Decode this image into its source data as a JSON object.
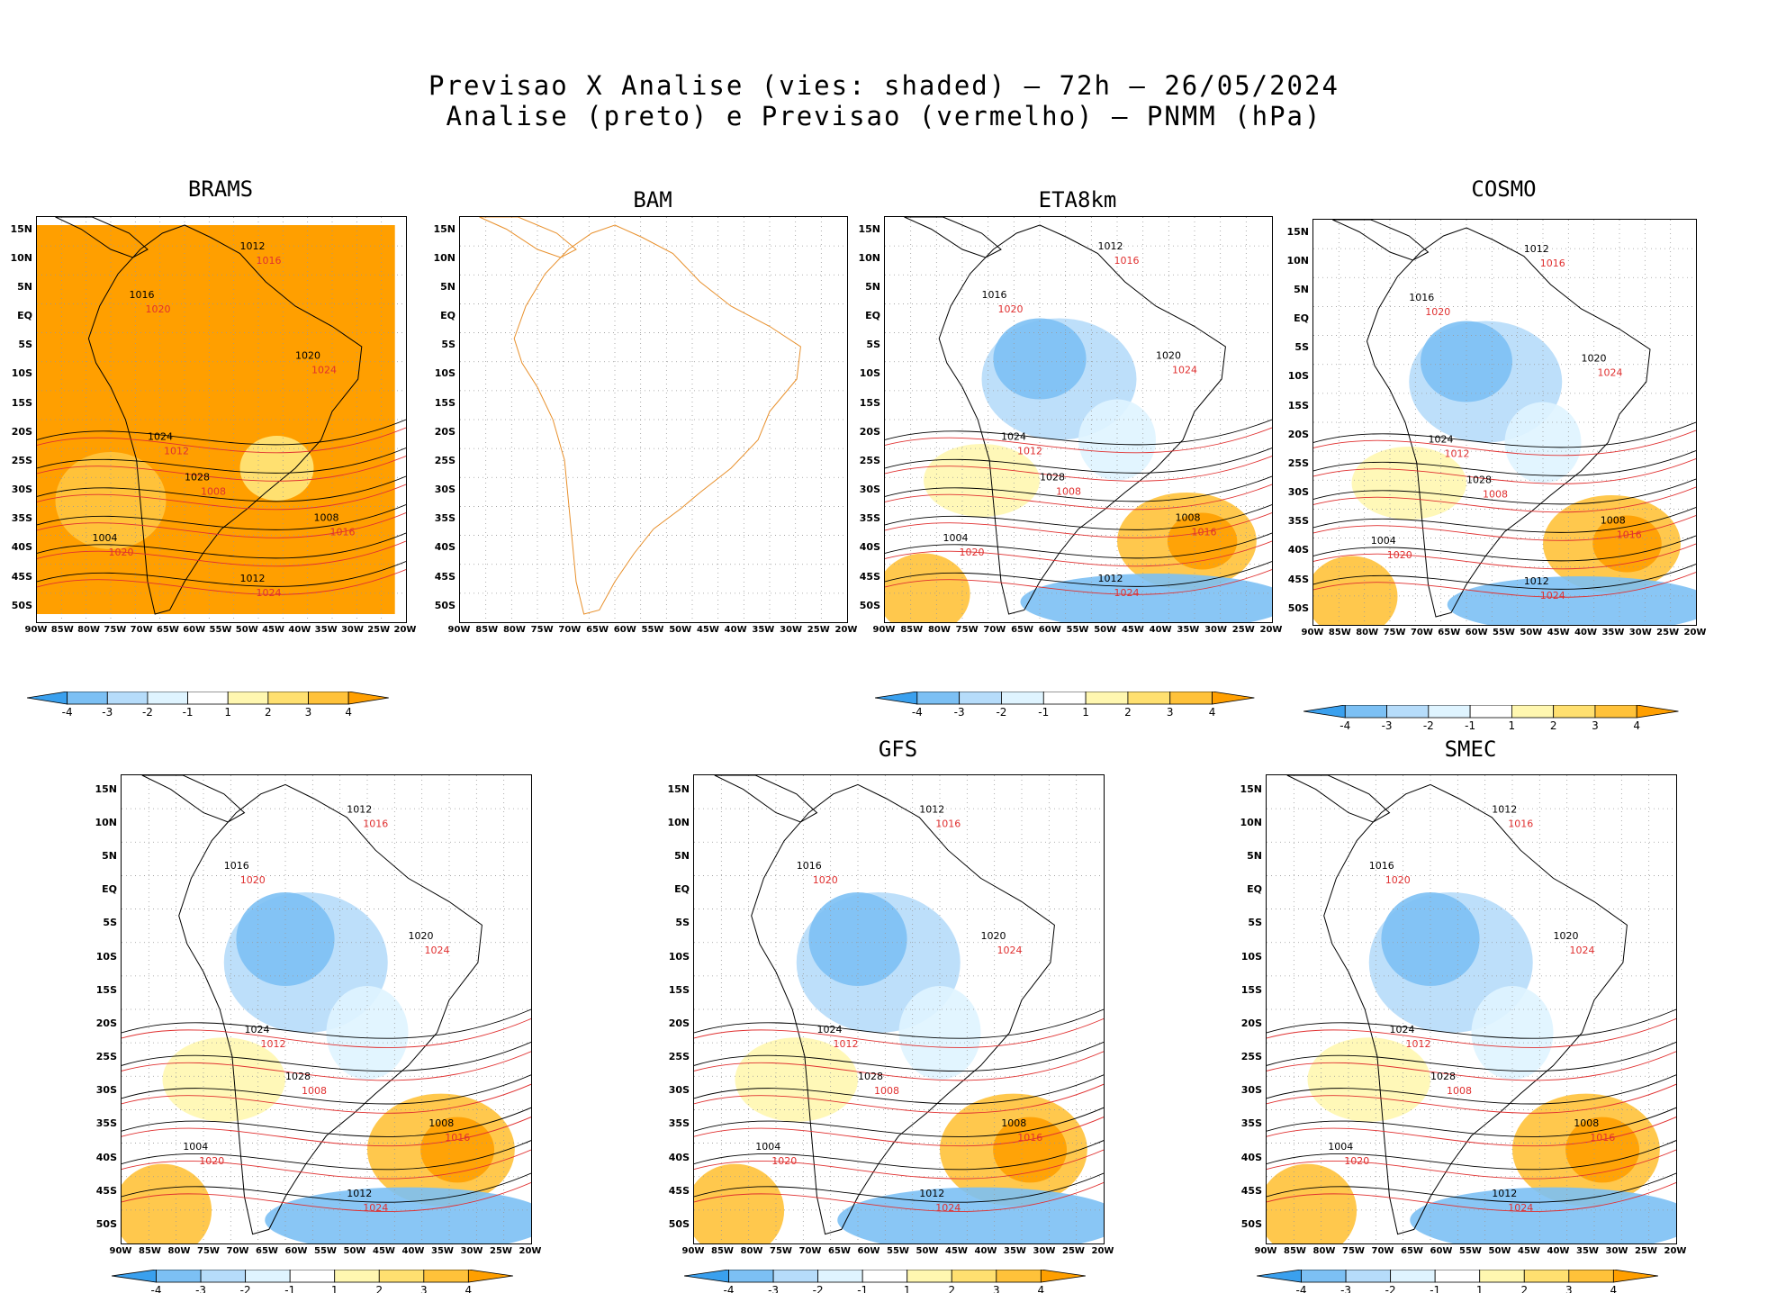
{
  "title": {
    "line1": "Previsao X Analise (vies: shaded) – 72h – 26/05/2024",
    "line2": "Analise (preto) e Previsao (vermelho) – PNMM (hPa)"
  },
  "axes": {
    "lat_labels": [
      "15N",
      "10N",
      "5N",
      "EQ",
      "5S",
      "10S",
      "15S",
      "20S",
      "25S",
      "30S",
      "35S",
      "40S",
      "45S",
      "50S"
    ],
    "lon_labels": [
      "90W",
      "85W",
      "80W",
      "75W",
      "70W",
      "65W",
      "60W",
      "55W",
      "50W",
      "45W",
      "40W",
      "35W",
      "30W",
      "25W",
      "20W"
    ]
  },
  "colorbar": {
    "labels": [
      "-4",
      "-3",
      "-2",
      "-1",
      "1",
      "2",
      "3",
      "4"
    ],
    "colors": [
      "#3aa0ee",
      "#7cc0f4",
      "#b6dcfa",
      "#dff4ff",
      "#ffffff",
      "#fff7b0",
      "#ffe070",
      "#ffc23a",
      "#ff9f00"
    ]
  },
  "panels": [
    {
      "name": "BRAMS",
      "bias": "warm"
    },
    {
      "name": "BAM",
      "bias": "none"
    },
    {
      "name": "ETA8km",
      "bias": "mixed"
    },
    {
      "name": "COSMO",
      "bias": "mixed"
    },
    {
      "name": "",
      "bias": "mixed"
    },
    {
      "name": "GFS",
      "bias": "mixed"
    },
    {
      "name": "SMEC",
      "bias": "mixed"
    }
  ],
  "isobar_labels": {
    "black": [
      "1012",
      "1016",
      "1020",
      "1024",
      "1028",
      "1008",
      "1004"
    ],
    "red": [
      "1016",
      "1020",
      "1024",
      "1012",
      "1008"
    ]
  }
}
